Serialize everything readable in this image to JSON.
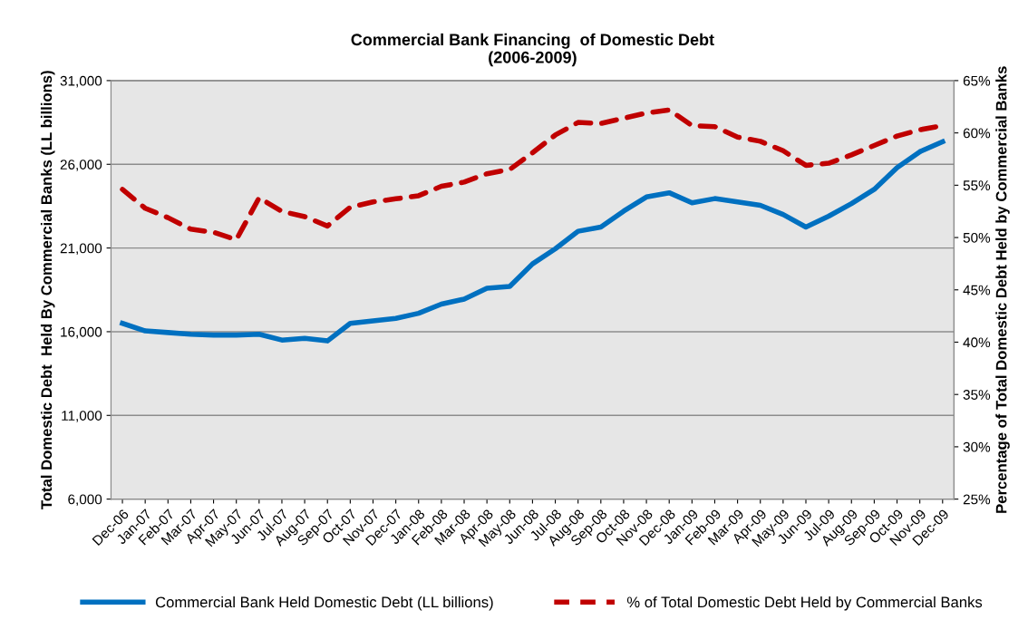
{
  "chart_data": {
    "type": "line",
    "title": "Commercial Bank Financing  of Domestic Debt\n(2006-2009)",
    "ylabel": "Total Domestic Debt  Held By Commercial Banks (LL billions)",
    "y2label": "Percentage of Total Domestic Debt Held by Commercial Banks",
    "categories": [
      "Dec-06",
      "Jan-07",
      "Feb-07",
      "Mar-07",
      "Apr-07",
      "May-07",
      "Jun-07",
      "Jul-07",
      "Aug-07",
      "Sep-07",
      "Oct-07",
      "Nov-07",
      "Dec-07",
      "Jan-08",
      "Feb-08",
      "Mar-08",
      "Apr-08",
      "May-08",
      "Jun-08",
      "Jul-08",
      "Aug-08",
      "Sep-08",
      "Oct-08",
      "Nov-08",
      "Dec-08",
      "Jan-09",
      "Feb-09",
      "Mar-09",
      "Apr-09",
      "May-09",
      "Jun-09",
      "Jul-09",
      "Aug-09",
      "Sep-09",
      "Oct-09",
      "Nov-09",
      "Dec-09"
    ],
    "series": [
      {
        "name": "Commercial Bank Held Domestic Debt (LL billions)",
        "color": "#0070c0",
        "line_style": "solid",
        "values": [
          16500,
          16050,
          15950,
          15850,
          15800,
          15800,
          15850,
          15500,
          15600,
          15450,
          16500,
          16650,
          16800,
          17100,
          17650,
          17950,
          18600,
          18700,
          20050,
          20950,
          22000,
          22250,
          23200,
          24050,
          24300,
          23700,
          23950,
          23750,
          23550,
          23000,
          22250,
          22900,
          23650,
          24500,
          25800,
          26750,
          27350
        ]
      },
      {
        "name": "% of Total Domestic Debt Held by Commercial Banks",
        "color": "#c00000",
        "line_style": "dashed",
        "axis": "y2",
        "values": [
          54.6,
          52.8,
          51.9,
          50.8,
          50.5,
          49.8,
          53.8,
          52.5,
          52.0,
          51.1,
          52.9,
          53.4,
          53.7,
          54.0,
          54.9,
          55.3,
          56.1,
          56.5,
          58.1,
          59.8,
          61.0,
          60.9,
          61.4,
          61.9,
          62.2,
          60.7,
          60.6,
          59.6,
          59.2,
          58.3,
          56.9,
          57.1,
          57.9,
          58.8,
          59.7,
          60.3,
          60.7
        ]
      }
    ],
    "ylim": [
      6000,
      31000
    ],
    "yticks": [
      {
        "value": 6000,
        "label": "6,000"
      },
      {
        "value": 11000,
        "label": "11,000"
      },
      {
        "value": 16000,
        "label": "16,000"
      },
      {
        "value": 21000,
        "label": "21,000"
      },
      {
        "value": 26000,
        "label": "26,000"
      },
      {
        "value": 31000,
        "label": "31,000"
      }
    ],
    "y2lim": [
      25,
      65
    ],
    "y2ticks": [
      {
        "value": 25,
        "label": "25%"
      },
      {
        "value": 30,
        "label": "30%"
      },
      {
        "value": 35,
        "label": "35%"
      },
      {
        "value": 40,
        "label": "40%"
      },
      {
        "value": 45,
        "label": "45%"
      },
      {
        "value": 50,
        "label": "50%"
      },
      {
        "value": 55,
        "label": "55%"
      },
      {
        "value": 60,
        "label": "60%"
      },
      {
        "value": 65,
        "label": "65%"
      }
    ],
    "grid": "y",
    "legend": "bottom",
    "marker": "none"
  }
}
